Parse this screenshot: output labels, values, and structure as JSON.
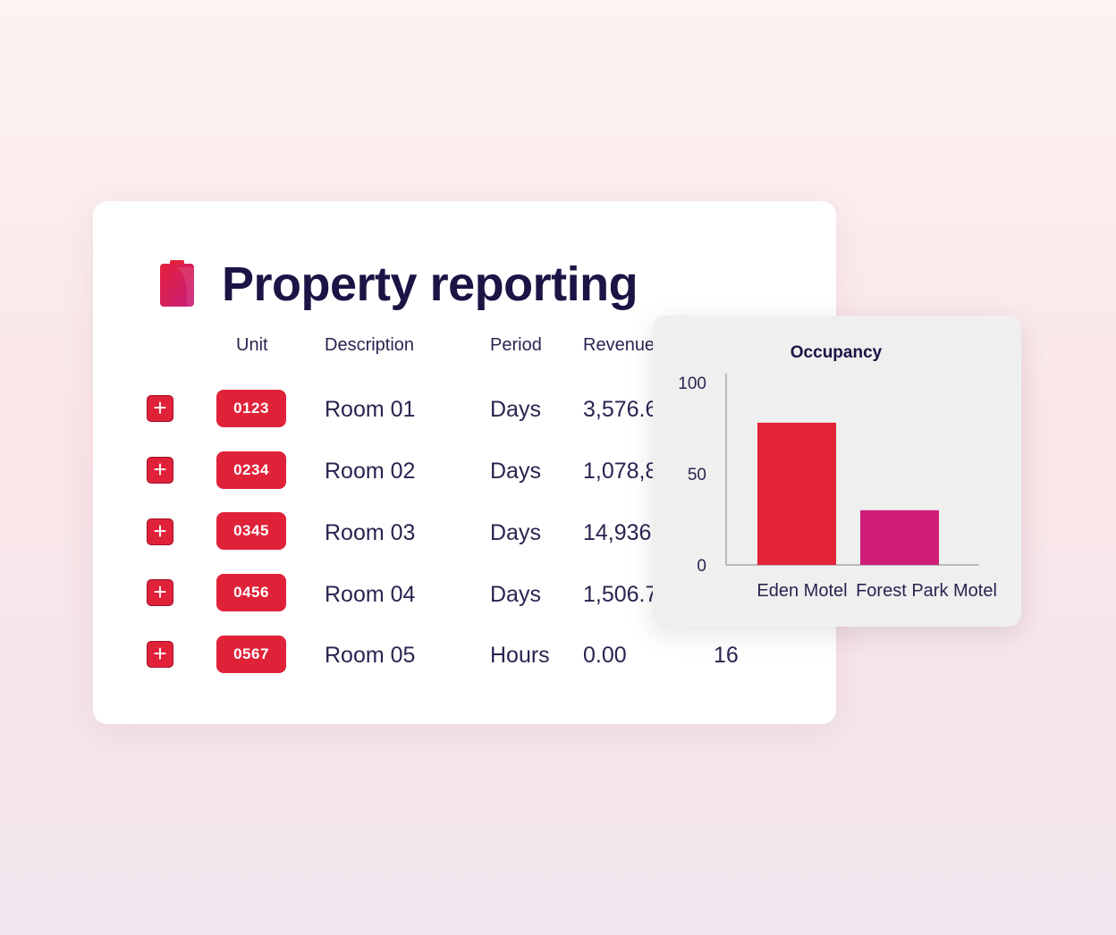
{
  "report": {
    "title": "Property reporting",
    "logo_icon": "clipboard-icon",
    "columns": [
      "Unit",
      "Description",
      "Period",
      "Revenue"
    ],
    "rows": [
      {
        "unit": "0123",
        "description": "Room 01",
        "period": "Days",
        "revenue": "3,576.6",
        "extra": ""
      },
      {
        "unit": "0234",
        "description": "Room 02",
        "period": "Days",
        "revenue": "1,078,8",
        "extra": ""
      },
      {
        "unit": "0345",
        "description": "Room 03",
        "period": "Days",
        "revenue": "14,936",
        "extra": ""
      },
      {
        "unit": "0456",
        "description": "Room 04",
        "period": "Days",
        "revenue": "1,506.7",
        "extra": ""
      },
      {
        "unit": "0567",
        "description": "Room 05",
        "period": "Hours",
        "revenue": "0.00",
        "extra": "16"
      }
    ],
    "add_icon": "plus-icon"
  },
  "colors": {
    "accent": "#e02239",
    "secondary": "#cf1d77",
    "text_dark": "#1b1445"
  },
  "chart_data": {
    "type": "bar",
    "title": "Occupancy",
    "categories": [
      "Eden Motel",
      "Forest Park Motel"
    ],
    "values": [
      78,
      30
    ],
    "colors": [
      "#e32238",
      "#cf1d77"
    ],
    "ylim": [
      0,
      100
    ],
    "yticks": [
      "0",
      "50",
      "100"
    ],
    "xlabel": "",
    "ylabel": "",
    "grid": false
  }
}
